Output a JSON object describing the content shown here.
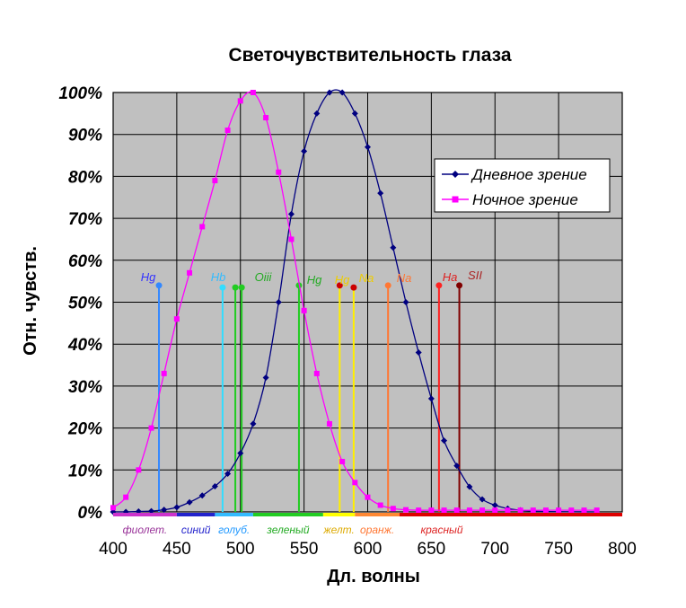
{
  "chart_data": {
    "type": "line",
    "title": "Светочувствительность глаза",
    "xlabel": "Дл. волны",
    "ylabel": "Отн. чувств.",
    "xlim": [
      400,
      800
    ],
    "ylim": [
      0,
      100
    ],
    "xticks": [
      "400",
      "450",
      "500",
      "550",
      "600",
      "650",
      "700",
      "750",
      "800"
    ],
    "yticks": [
      "0%",
      "10%",
      "20%",
      "30%",
      "40%",
      "50%",
      "60%",
      "70%",
      "80%",
      "90%",
      "100%"
    ],
    "grid": true,
    "legend_position": "right",
    "series": [
      {
        "name": "Дневное зрение",
        "color": "#000080",
        "marker": "diamond",
        "x": [
          400,
          410,
          420,
          430,
          440,
          450,
          460,
          470,
          480,
          490,
          500,
          510,
          520,
          530,
          540,
          550,
          560,
          570,
          580,
          590,
          600,
          610,
          620,
          630,
          640,
          650,
          660,
          670,
          680,
          690,
          700,
          710,
          720,
          730,
          740,
          750,
          760,
          770,
          780
        ],
        "y": [
          0,
          0,
          0.1,
          0.2,
          0.5,
          1.1,
          2.3,
          3.9,
          6.1,
          9.1,
          14,
          21,
          32,
          50,
          71,
          86,
          95,
          100,
          100,
          95,
          87,
          76,
          63,
          50,
          38,
          27,
          17,
          11,
          6,
          3,
          1.6,
          0.8,
          0.4,
          0.2,
          0.1,
          0.05,
          0.02,
          0.01,
          0
        ]
      },
      {
        "name": "Ночное зрение",
        "color": "#ff00ff",
        "marker": "square",
        "x": [
          400,
          410,
          420,
          430,
          440,
          450,
          460,
          470,
          480,
          490,
          500,
          510,
          520,
          530,
          540,
          550,
          560,
          570,
          580,
          590,
          600,
          610,
          620,
          630,
          640,
          650,
          660,
          670,
          680,
          690,
          700,
          710,
          720,
          730,
          740,
          750,
          760,
          770,
          780
        ],
        "y": [
          1,
          3.5,
          10,
          20,
          33,
          46,
          57,
          68,
          79,
          91,
          98,
          100,
          94,
          81,
          65,
          48,
          33,
          21,
          12,
          7,
          3.5,
          1.6,
          0.8,
          0.5,
          0.4,
          0.4,
          0.4,
          0.4,
          0.4,
          0.4,
          0.4,
          0.4,
          0.4,
          0.4,
          0.4,
          0.4,
          0.4,
          0.4,
          0.4
        ]
      }
    ],
    "spectral_lines": [
      {
        "label": "Hg",
        "wavelength": 436,
        "level": 54,
        "color": "#3388ff"
      },
      {
        "label": "Hb",
        "wavelength": 486,
        "level": 53.5,
        "color": "#33ddff"
      },
      {
        "label": "Oiii",
        "wavelength": 496,
        "level": 53.5,
        "color": "#22cc22"
      },
      {
        "label": "Oiii",
        "wavelength": 501,
        "level": 53.5,
        "color": "#22cc22"
      },
      {
        "label": "Hg",
        "wavelength": 546,
        "level": 54,
        "color": "#22cc22"
      },
      {
        "label": "Hg",
        "wavelength": 578,
        "level": 54,
        "color": "#ffee00"
      },
      {
        "label": "Na",
        "wavelength": 589,
        "level": 53.5,
        "color": "#ffee00"
      },
      {
        "label": "Na",
        "wavelength": 616,
        "level": 54,
        "color": "#ff7733"
      },
      {
        "label": "Ha",
        "wavelength": 656,
        "level": 54,
        "color": "#ff2222"
      },
      {
        "label": "SII",
        "wavelength": 672,
        "level": 54,
        "color": "#800000"
      }
    ],
    "line_labels": [
      {
        "text": "Hg",
        "color": "#3333ff"
      },
      {
        "text": "Hb",
        "color": "#33bbff"
      },
      {
        "text": "Oiii",
        "color": "#22aa22"
      },
      {
        "text": "Hg",
        "color": "#22aa22"
      },
      {
        "text": "Hg",
        "color": "#eecc00"
      },
      {
        "text": "Na",
        "color": "#eecc00"
      },
      {
        "text": "Na",
        "color": "#ff7733"
      },
      {
        "text": "Ha",
        "color": "#dd2222"
      },
      {
        "text": "SII",
        "color": "#aa2222"
      }
    ],
    "color_bands": [
      {
        "label": "фиолет.",
        "from": 400,
        "to": 450,
        "color": "#cc33cc",
        "label_color": "#993399"
      },
      {
        "label": "синий",
        "from": 450,
        "to": 480,
        "color": "#2222cc",
        "label_color": "#2222cc"
      },
      {
        "label": "голуб.",
        "from": 480,
        "to": 510,
        "color": "#33bbff",
        "label_color": "#2299ff"
      },
      {
        "label": "зеленый",
        "from": 510,
        "to": 565,
        "color": "#22cc22",
        "label_color": "#22aa22"
      },
      {
        "label": "желт.",
        "from": 565,
        "to": 590,
        "color": "#ffff00",
        "label_color": "#ddaa00"
      },
      {
        "label": "оранж.",
        "from": 590,
        "to": 625,
        "color": "#ff8833",
        "label_color": "#ff7733"
      },
      {
        "label": "красный",
        "from": 625,
        "to": 800,
        "color": "#dd0000",
        "label_color": "#dd2222"
      }
    ],
    "colors": {
      "plot_background": "#c0c0c0",
      "grid": "#000000"
    }
  }
}
